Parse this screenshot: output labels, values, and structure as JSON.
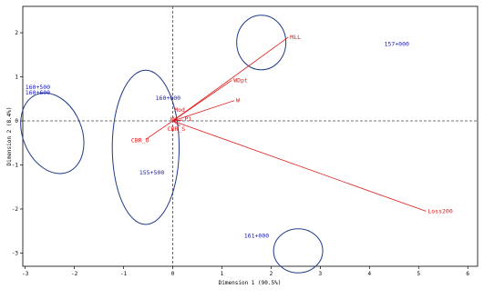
{
  "chart_data": {
    "type": "scatter",
    "title": "",
    "xlabel": "Dimension 1 (90.5%)",
    "ylabel": "Dimension 2 (8.4%)",
    "xlim": [
      -3.05,
      6.2
    ],
    "ylim": [
      -3.3,
      2.6
    ],
    "xticks": [
      -3,
      -2,
      -1,
      0,
      1,
      2,
      3,
      4,
      5,
      6
    ],
    "yticks": [
      -3,
      -2,
      -1,
      0,
      1,
      2
    ],
    "reference_lines": {
      "x": 0,
      "y": 0,
      "style": "dashed"
    },
    "grid": false,
    "legend": "none",
    "colors": {
      "points": "#1a1ab4",
      "vectors": "#e01818",
      "ellipses": "#1f3c88",
      "axes": "#000000"
    },
    "points": [
      {
        "label": "160+500",
        "x": -3.0,
        "y": 0.72
      },
      {
        "label": "160+600",
        "x": -3.0,
        "y": 0.6
      },
      {
        "label": "160+000",
        "x": -0.35,
        "y": 0.48
      },
      {
        "label": "155+500",
        "x": -0.68,
        "y": -1.22
      },
      {
        "label": "157+000",
        "x": 4.3,
        "y": 1.7
      },
      {
        "label": "161+000",
        "x": 1.45,
        "y": -2.65
      }
    ],
    "ellipses": [
      {
        "cx": -2.45,
        "cy": -0.28,
        "rx": 0.6,
        "ry": 0.95,
        "rotation_deg": 22
      },
      {
        "cx": -0.55,
        "cy": -0.6,
        "rx": 0.68,
        "ry": 1.75,
        "rotation_deg": 0
      },
      {
        "cx": 1.8,
        "cy": 1.78,
        "rx": 0.5,
        "ry": 0.62,
        "rotation_deg": 0
      },
      {
        "cx": 2.55,
        "cy": -2.95,
        "rx": 0.5,
        "ry": 0.5,
        "rotation_deg": 0
      }
    ],
    "vectors": [
      {
        "label": "MLL",
        "x": 2.35,
        "y": 1.9
      },
      {
        "label": "WDpt",
        "x": 1.2,
        "y": 0.92
      },
      {
        "label": "W",
        "x": 1.25,
        "y": 0.46
      },
      {
        "label": "Loss200",
        "x": 5.15,
        "y": -2.05
      },
      {
        "label": "CBR_U",
        "x": -0.55,
        "y": -0.42
      },
      {
        "label": "Mod",
        "x": 0.18,
        "y": 0.15
      },
      {
        "label": "Wd",
        "x": 0.08,
        "y": 0.04
      },
      {
        "label": "CBR_S",
        "x": 0.15,
        "y": -0.12
      },
      {
        "label": "P1",
        "x": 0.2,
        "y": 0.02
      }
    ]
  }
}
